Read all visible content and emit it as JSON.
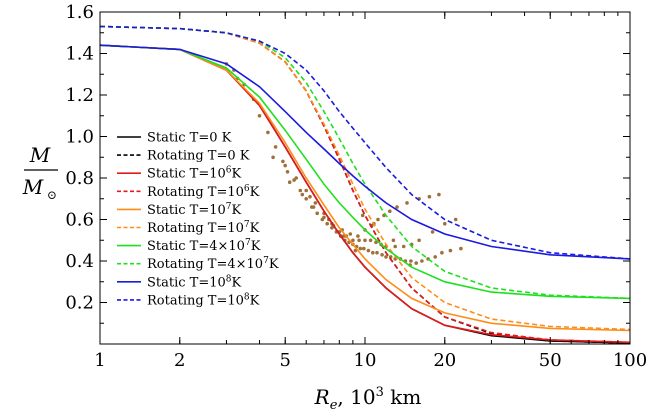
{
  "chart_data": {
    "type": "line",
    "xscale": "log",
    "xlim": [
      1,
      100
    ],
    "ylim": [
      0.0,
      1.6
    ],
    "x_ticks": [
      1,
      2,
      5,
      10,
      20,
      50,
      100
    ],
    "x_tick_labels": [
      "1",
      "2",
      "5",
      "10",
      "20",
      "50",
      "100"
    ],
    "y_ticks": [
      0.2,
      0.4,
      0.6,
      0.8,
      1.0,
      1.2,
      1.4,
      1.6
    ],
    "y_tick_labels": [
      "0.2",
      "0.4",
      "0.6",
      "0.8",
      "1.0",
      "1.2",
      "1.4",
      "1.6"
    ],
    "xlabel_parts": [
      "R",
      "e",
      ", 10",
      "3",
      " km"
    ],
    "ylabel_numerator": "M",
    "ylabel_denominator_base": "M",
    "ylabel_denominator_sub": "⊙",
    "legend_position": "left",
    "series": [
      {
        "name_parts": [
          "Static T=0 K",
          "",
          ""
        ],
        "color": "#000000",
        "dash": "solid",
        "x": [
          1,
          2,
          3,
          4,
          5,
          6,
          7,
          8,
          9,
          10,
          12,
          15,
          20,
          30,
          50,
          100
        ],
        "y": [
          1.44,
          1.42,
          1.32,
          1.15,
          0.95,
          0.78,
          0.64,
          0.53,
          0.44,
          0.37,
          0.27,
          0.17,
          0.09,
          0.04,
          0.015,
          0.005
        ]
      },
      {
        "name_parts": [
          "Rotating T=0 K",
          "",
          ""
        ],
        "color": "#000000",
        "dash": "dashed",
        "x": [
          1,
          2,
          3,
          4,
          5,
          6,
          7,
          8,
          9,
          10,
          12,
          15,
          20,
          30,
          50,
          100
        ],
        "y": [
          1.53,
          1.52,
          1.5,
          1.45,
          1.36,
          1.22,
          1.05,
          0.89,
          0.74,
          0.62,
          0.44,
          0.27,
          0.13,
          0.05,
          0.015,
          0.005
        ]
      },
      {
        "name_parts": [
          "Static T=10",
          "6",
          "K"
        ],
        "color": "#e41a1c",
        "dash": "solid",
        "x": [
          1,
          2,
          3,
          4,
          5,
          6,
          7,
          8,
          9,
          10,
          12,
          15,
          20,
          30,
          50,
          100
        ],
        "y": [
          1.44,
          1.42,
          1.32,
          1.15,
          0.95,
          0.78,
          0.64,
          0.53,
          0.44,
          0.37,
          0.27,
          0.17,
          0.09,
          0.045,
          0.02,
          0.008
        ]
      },
      {
        "name_parts": [
          "Rotating T=10",
          "6",
          "K"
        ],
        "color": "#e41a1c",
        "dash": "dashed",
        "x": [
          1,
          2,
          3,
          4,
          5,
          6,
          7,
          8,
          9,
          10,
          12,
          15,
          20,
          30,
          50,
          100
        ],
        "y": [
          1.53,
          1.52,
          1.5,
          1.45,
          1.36,
          1.22,
          1.05,
          0.89,
          0.74,
          0.62,
          0.44,
          0.27,
          0.13,
          0.055,
          0.02,
          0.008
        ]
      },
      {
        "name_parts": [
          "Static T=10",
          "7",
          "K"
        ],
        "color": "#ff8c1a",
        "dash": "solid",
        "x": [
          1,
          2,
          3,
          4,
          5,
          6,
          7,
          8,
          9,
          10,
          12,
          15,
          20,
          30,
          50,
          100
        ],
        "y": [
          1.44,
          1.42,
          1.32,
          1.16,
          0.97,
          0.8,
          0.67,
          0.56,
          0.48,
          0.41,
          0.31,
          0.22,
          0.15,
          0.1,
          0.075,
          0.065
        ]
      },
      {
        "name_parts": [
          "Rotating T=10",
          "7",
          "K"
        ],
        "color": "#ff8c1a",
        "dash": "dashed",
        "x": [
          1,
          2,
          3,
          4,
          5,
          6,
          7,
          8,
          9,
          10,
          12,
          15,
          20,
          30,
          50,
          100
        ],
        "y": [
          1.53,
          1.52,
          1.5,
          1.45,
          1.36,
          1.22,
          1.06,
          0.91,
          0.77,
          0.65,
          0.48,
          0.32,
          0.2,
          0.12,
          0.085,
          0.07
        ]
      },
      {
        "name_parts": [
          "Static T=4×10",
          "7",
          "K"
        ],
        "color": "#1ee01e",
        "dash": "solid",
        "x": [
          1,
          2,
          3,
          4,
          5,
          6,
          7,
          8,
          9,
          10,
          12,
          15,
          20,
          30,
          50,
          100
        ],
        "y": [
          1.44,
          1.42,
          1.33,
          1.19,
          1.03,
          0.89,
          0.77,
          0.68,
          0.61,
          0.55,
          0.46,
          0.37,
          0.3,
          0.25,
          0.23,
          0.22
        ]
      },
      {
        "name_parts": [
          "Rotating T=4×10",
          "7",
          "K"
        ],
        "color": "#1ee01e",
        "dash": "dashed",
        "x": [
          1,
          2,
          3,
          4,
          5,
          6,
          7,
          8,
          9,
          10,
          12,
          15,
          20,
          30,
          50,
          100
        ],
        "y": [
          1.53,
          1.52,
          1.5,
          1.46,
          1.38,
          1.26,
          1.12,
          0.99,
          0.87,
          0.77,
          0.62,
          0.47,
          0.35,
          0.27,
          0.235,
          0.22
        ]
      },
      {
        "name_parts": [
          "Static T=10",
          "8",
          "K"
        ],
        "color": "#1a1ae0",
        "dash": "solid",
        "x": [
          1,
          2,
          3,
          4,
          5,
          6,
          7,
          8,
          9,
          10,
          12,
          15,
          20,
          30,
          50,
          100
        ],
        "y": [
          1.44,
          1.42,
          1.35,
          1.24,
          1.12,
          1.02,
          0.94,
          0.87,
          0.81,
          0.76,
          0.68,
          0.6,
          0.53,
          0.47,
          0.43,
          0.41
        ]
      },
      {
        "name_parts": [
          "Rotating T=10",
          "8",
          "K"
        ],
        "color": "#1a1ae0",
        "dash": "dashed",
        "x": [
          1,
          2,
          3,
          4,
          5,
          6,
          7,
          8,
          9,
          10,
          12,
          15,
          20,
          30,
          50,
          100
        ],
        "y": [
          1.53,
          1.52,
          1.5,
          1.46,
          1.4,
          1.32,
          1.22,
          1.12,
          1.04,
          0.97,
          0.85,
          0.72,
          0.6,
          0.5,
          0.44,
          0.41
        ]
      }
    ],
    "scatter": {
      "color": "#a0703a",
      "x": [
        3.2,
        3.5,
        3.8,
        4.0,
        4.3,
        4.6,
        4.9,
        5.1,
        5.4,
        5.7,
        6.0,
        6.3,
        6.6,
        6.9,
        7.2,
        7.5,
        7.8,
        8.1,
        8.4,
        8.7,
        9.0,
        9.3,
        9.6,
        9.9,
        10.3,
        10.7,
        11.1,
        11.6,
        12.0,
        12.5,
        13.0,
        13.6,
        14.2,
        14.9,
        15.6,
        16.4,
        17.3,
        18.4,
        19.5,
        21.0,
        23.0,
        4.5,
        5.0,
        5.5,
        6.0,
        6.5,
        7.0,
        7.5,
        8.0,
        8.5,
        9.0,
        9.5,
        10.0,
        10.5,
        11.0,
        11.5,
        12.0,
        13.0,
        14.0,
        15.0,
        16.0,
        18.0,
        20.0,
        22.0,
        5.2,
        5.8,
        6.4,
        7.0,
        7.6,
        8.2,
        8.8,
        9.4,
        10.0,
        10.6,
        11.2,
        11.8,
        12.4,
        13.2,
        14.4,
        16.0,
        17.5,
        19.0,
        3.0,
        3.3,
        9.8,
        10.8,
        12.8,
        14.8,
        6.2,
        7.3,
        8.3,
        9.2
      ],
      "y": [
        1.32,
        1.25,
        1.18,
        1.1,
        1.02,
        0.95,
        0.88,
        0.83,
        0.79,
        0.74,
        0.7,
        0.66,
        0.63,
        0.6,
        0.58,
        0.56,
        0.54,
        0.52,
        0.5,
        0.49,
        0.48,
        0.47,
        0.46,
        0.46,
        0.45,
        0.44,
        0.44,
        0.43,
        0.42,
        0.42,
        0.41,
        0.41,
        0.4,
        0.4,
        0.39,
        0.4,
        0.41,
        0.42,
        0.44,
        0.45,
        0.46,
        0.9,
        0.86,
        0.8,
        0.74,
        0.68,
        0.63,
        0.58,
        0.54,
        0.52,
        0.5,
        0.5,
        0.5,
        0.5,
        0.49,
        0.48,
        0.47,
        0.47,
        0.47,
        0.48,
        0.5,
        0.54,
        0.58,
        0.6,
        0.78,
        0.72,
        0.66,
        0.61,
        0.57,
        0.55,
        0.53,
        0.52,
        0.55,
        0.57,
        0.6,
        0.62,
        0.64,
        0.66,
        0.68,
        0.7,
        0.71,
        0.72,
        1.35,
        1.28,
        0.62,
        0.58,
        0.5,
        0.38,
        0.71,
        0.6,
        0.52,
        0.45
      ]
    }
  }
}
